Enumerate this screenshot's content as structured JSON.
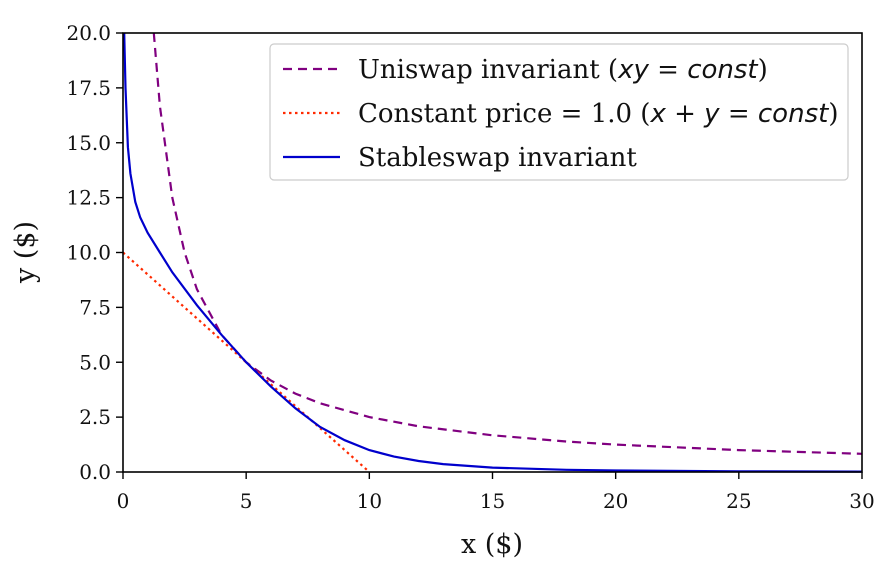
{
  "chart_data": {
    "type": "line",
    "xlabel": "x ($)",
    "ylabel": "y ($)",
    "xlim": [
      0,
      30
    ],
    "ylim": [
      0,
      20
    ],
    "xticks": [
      "0",
      "5",
      "10",
      "15",
      "20",
      "25",
      "30"
    ],
    "yticks": [
      "0.0",
      "2.5",
      "5.0",
      "7.5",
      "10.0",
      "12.5",
      "15.0",
      "17.5",
      "20.0"
    ],
    "grid": false,
    "legend_position": "top-right",
    "series": [
      {
        "name": "Uniswap invariant (xy = const)",
        "legend_parts": [
          "Uniswap invariant (",
          "xy",
          " = ",
          "const",
          ")"
        ],
        "style": "dashed",
        "color": "#800080",
        "x": [
          1.25,
          1.5,
          2,
          2.5,
          3,
          4,
          5,
          6,
          7,
          8,
          10,
          12,
          15,
          18,
          20,
          25,
          30
        ],
        "y": [
          20,
          16.67,
          12.5,
          10,
          8.33,
          6.25,
          5,
          4.17,
          3.57,
          3.13,
          2.5,
          2.08,
          1.67,
          1.39,
          1.25,
          1.0,
          0.83
        ]
      },
      {
        "name": "Constant price = 1.0 (x + y = const)",
        "legend_parts": [
          "Constant price = 1.0 (",
          "x",
          " + ",
          "y",
          " = ",
          "const",
          ")"
        ],
        "style": "dotted",
        "color": "#ff2a00",
        "x": [
          0,
          10
        ],
        "y": [
          10,
          0
        ]
      },
      {
        "name": "Stableswap invariant",
        "legend_parts": [
          "Stableswap invariant"
        ],
        "style": "solid",
        "color": "#0000cc",
        "x": [
          0.05,
          0.1,
          0.2,
          0.3,
          0.5,
          0.7,
          1,
          1.5,
          2,
          3,
          4,
          5,
          6,
          7,
          8,
          9,
          10,
          11,
          12,
          13,
          15,
          18,
          20,
          25,
          30
        ],
        "y": [
          20,
          17.5,
          14.8,
          13.6,
          12.3,
          11.6,
          10.9,
          10.0,
          9.1,
          7.6,
          6.25,
          5.0,
          3.9,
          2.9,
          2.05,
          1.45,
          1.0,
          0.7,
          0.5,
          0.36,
          0.2,
          0.1,
          0.07,
          0.03,
          0.02
        ]
      }
    ]
  }
}
